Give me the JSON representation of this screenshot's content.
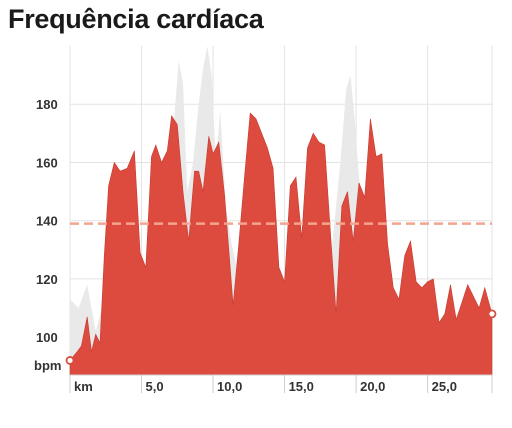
{
  "title": "Frequência cardíaca",
  "chart_data": {
    "type": "area",
    "title": "Frequência cardíaca",
    "unit_y": "bpm",
    "unit_x": "km",
    "xlim": [
      0,
      29.5
    ],
    "ylim": [
      87,
      200
    ],
    "y_ticks": [
      100,
      120,
      140,
      160,
      180
    ],
    "y_tick_labels": [
      "100",
      "120",
      "140",
      "160",
      "180"
    ],
    "x_ticks": [
      5,
      10,
      15,
      20,
      25
    ],
    "x_tick_labels": [
      "5,0",
      "10,0",
      "15,0",
      "20,0",
      "25,0"
    ],
    "average_line": 139,
    "grid": true,
    "colors": {
      "hr_fill": "#dd4b3f",
      "hr_stroke": "#c73a30",
      "background_series": "#e9e9e9",
      "average_line": "#f4a58f",
      "grid": "#e3e3e3",
      "marker_stroke": "#d64f42"
    },
    "series": [
      {
        "role": "heart_rate",
        "x": [
          0,
          0.5,
          0.8,
          1.2,
          1.5,
          1.8,
          2.1,
          2.4,
          2.7,
          3.1,
          3.5,
          4.0,
          4.5,
          4.9,
          5.3,
          5.7,
          6.0,
          6.4,
          6.8,
          7.1,
          7.5,
          7.9,
          8.3,
          8.7,
          9.0,
          9.3,
          9.7,
          10.0,
          10.4,
          10.8,
          11.1,
          11.4,
          11.8,
          12.2,
          12.6,
          13.0,
          13.4,
          13.8,
          14.2,
          14.6,
          15.0,
          15.4,
          15.8,
          16.2,
          16.6,
          17.0,
          17.4,
          17.8,
          18.2,
          18.6,
          19.0,
          19.4,
          19.8,
          20.2,
          20.6,
          21.0,
          21.4,
          21.8,
          22.2,
          22.6,
          23.0,
          23.4,
          23.8,
          24.2,
          24.6,
          25.0,
          25.4,
          25.8,
          26.2,
          26.6,
          27.0,
          27.4,
          27.8,
          28.2,
          28.6,
          29.0,
          29.5
        ],
        "y": [
          92,
          95,
          97,
          107,
          95,
          101,
          98,
          128,
          152,
          160,
          157,
          158,
          164,
          129,
          124,
          162,
          166,
          160,
          164,
          176,
          173,
          150,
          133,
          157,
          157,
          150,
          169,
          163,
          167,
          149,
          130,
          111,
          132,
          155,
          177,
          175,
          170,
          165,
          158,
          124,
          119,
          152,
          155,
          134,
          165,
          170,
          167,
          166,
          136,
          108,
          145,
          150,
          133,
          153,
          148,
          175,
          162,
          163,
          132,
          117,
          113,
          128,
          133,
          119,
          117,
          119,
          120,
          105,
          108,
          118,
          106,
          112,
          118,
          114,
          110,
          117,
          108
        ]
      },
      {
        "role": "background_grey",
        "x": [
          0,
          0.6,
          1.2,
          1.8,
          2.4,
          3.0,
          3.6,
          4.2,
          4.8,
          5.4,
          6.0,
          6.6,
          7.2,
          7.6,
          7.9,
          8.2,
          8.6,
          9.0,
          9.3,
          9.6,
          9.9,
          10.2,
          10.5,
          10.9,
          11.3,
          11.7,
          12.1,
          12.5,
          13.0,
          13.5,
          14.0,
          14.5,
          15.0,
          15.5,
          16.0,
          16.5,
          17.0,
          17.5,
          18.0,
          18.5,
          18.9,
          19.3,
          19.6,
          19.9,
          20.2,
          20.5,
          20.8,
          21.2,
          21.6,
          22.0,
          22.4,
          22.8,
          23.2,
          23.6,
          24.0,
          24.5,
          25.0,
          25.5,
          26.0,
          26.5,
          27.0,
          27.5,
          28.0,
          28.5,
          29.0,
          29.5
        ],
        "y": [
          113,
          110,
          118,
          102,
          113,
          138,
          120,
          116,
          133,
          118,
          142,
          150,
          170,
          195,
          187,
          150,
          160,
          180,
          192,
          200,
          190,
          160,
          178,
          145,
          132,
          123,
          117,
          128,
          133,
          134,
          124,
          113,
          108,
          97,
          92,
          88,
          94,
          108,
          117,
          140,
          160,
          185,
          190,
          175,
          155,
          140,
          130,
          124,
          116,
          107,
          102,
          98,
          104,
          96,
          100,
          102,
          104,
          108,
          100,
          106,
          108,
          103,
          99,
          102,
          100,
          102
        ]
      }
    ],
    "markers": [
      {
        "x": 0,
        "y": 92
      },
      {
        "x": 29.5,
        "y": 108
      }
    ]
  }
}
